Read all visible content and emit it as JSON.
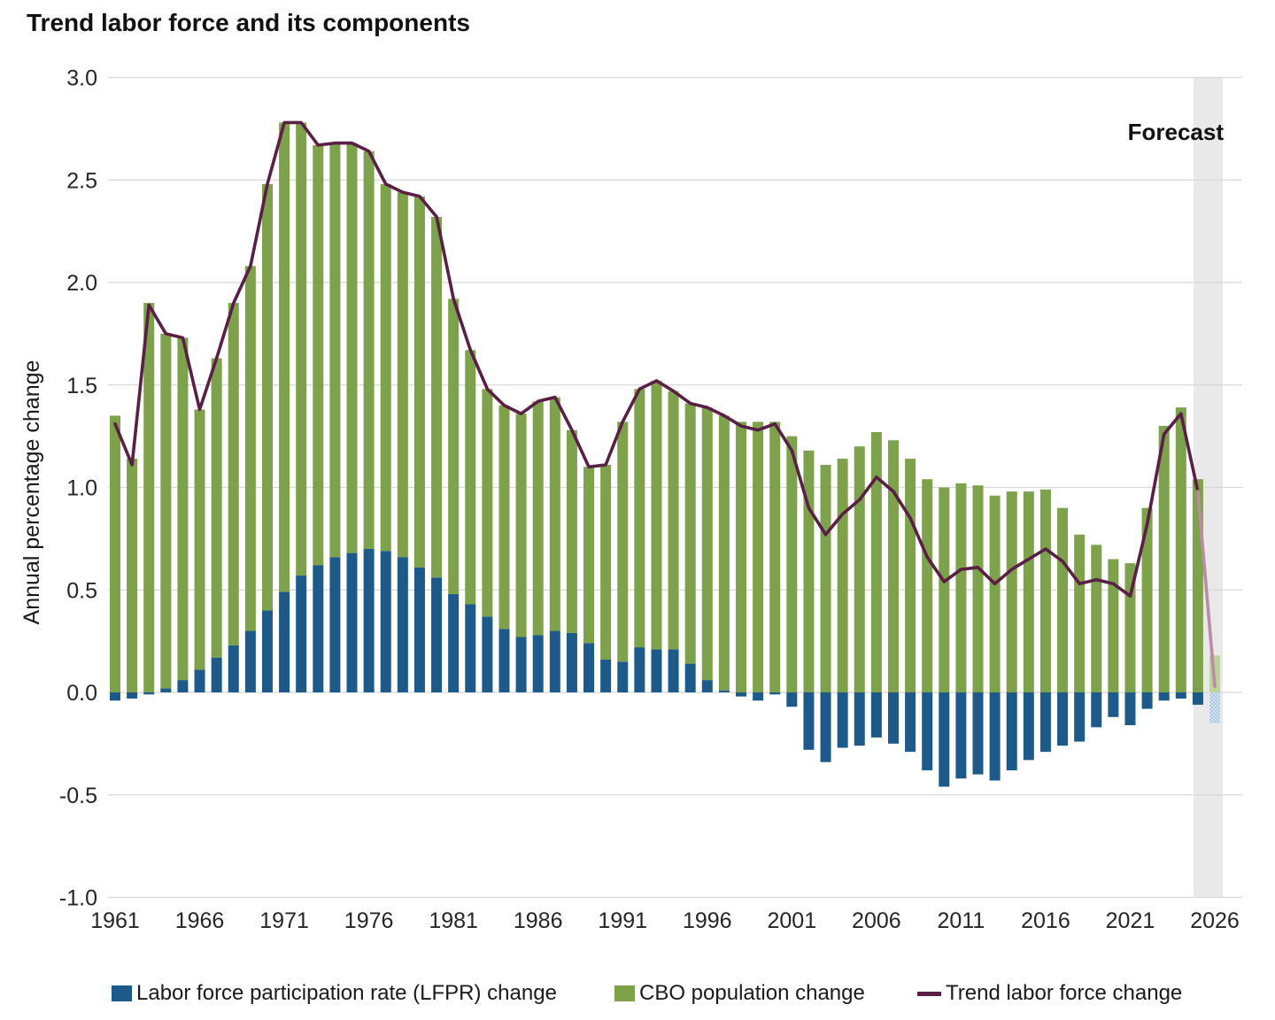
{
  "title": "Trend labor force and its components",
  "y_axis": {
    "title": "Annual percentage change",
    "tick_labels": [
      "3.0",
      "2.5",
      "2.0",
      "1.5",
      "1.0",
      "0.5",
      "0.0",
      "-0.5",
      "-1.0"
    ],
    "max": 3.0,
    "min": -1.0,
    "step": 0.5
  },
  "x_axis": {
    "tick_years": [
      1961,
      1966,
      1971,
      1976,
      1981,
      1986,
      1991,
      1996,
      2001,
      2006,
      2011,
      2016,
      2021,
      2026
    ]
  },
  "forecast": {
    "label": "Forecast",
    "year": 2026
  },
  "legend": [
    {
      "label": "Labor force participation rate (LFPR) change",
      "swatch": "blue-square",
      "color": "#1d5a8a"
    },
    {
      "label": "CBO population change",
      "swatch": "green-square",
      "color": "#7da24b"
    },
    {
      "label": "Trend labor force change",
      "swatch": "line",
      "color": "#5a1f45"
    }
  ],
  "colors": {
    "lfpr_bar": "#1d5a8a",
    "population_bar": "#7da24b",
    "trend_line": "#5a1f45",
    "trend_line_forecast": "#ba8aa8",
    "lfpr_bar_forecast": "#a7c6e1",
    "lfpr_bar_forecast_dot": "#d7e5f1",
    "population_bar_forecast": "#bcd39a",
    "forecast_band": "#e9e9e9",
    "gridline": "#d8d8d8",
    "axis_text": "#262626"
  },
  "chart_data": {
    "type": "stacked-bar-line",
    "title": "Trend labor force and its components",
    "ylabel": "Annual percentage change",
    "ylim": [
      -1.0,
      3.0
    ],
    "grid": "horizontal",
    "legend_position": "bottom",
    "forecast_year": 2026,
    "categories": [
      1961,
      1962,
      1963,
      1964,
      1965,
      1966,
      1967,
      1968,
      1969,
      1970,
      1971,
      1972,
      1973,
      1974,
      1975,
      1976,
      1977,
      1978,
      1979,
      1980,
      1981,
      1982,
      1983,
      1984,
      1985,
      1986,
      1987,
      1988,
      1989,
      1990,
      1991,
      1992,
      1993,
      1994,
      1995,
      1996,
      1997,
      1998,
      1999,
      2000,
      2001,
      2002,
      2003,
      2004,
      2005,
      2006,
      2007,
      2008,
      2009,
      2010,
      2011,
      2012,
      2013,
      2014,
      2015,
      2016,
      2017,
      2018,
      2019,
      2020,
      2021,
      2022,
      2023,
      2024,
      2025,
      2026
    ],
    "series": [
      {
        "name": "Labor force participation rate (LFPR) change",
        "type": "bar",
        "color": "#1d5a8a",
        "values": [
          -0.04,
          -0.03,
          -0.01,
          0.02,
          0.06,
          0.11,
          0.17,
          0.23,
          0.3,
          0.4,
          0.49,
          0.57,
          0.62,
          0.66,
          0.68,
          0.7,
          0.69,
          0.66,
          0.61,
          0.56,
          0.48,
          0.43,
          0.37,
          0.31,
          0.27,
          0.28,
          0.3,
          0.29,
          0.24,
          0.16,
          0.15,
          0.22,
          0.21,
          0.21,
          0.14,
          0.06,
          0.01,
          -0.02,
          -0.04,
          -0.01,
          -0.07,
          -0.28,
          -0.34,
          -0.27,
          -0.26,
          -0.22,
          -0.25,
          -0.29,
          -0.38,
          -0.46,
          -0.42,
          -0.4,
          -0.43,
          -0.38,
          -0.33,
          -0.29,
          -0.26,
          -0.24,
          -0.17,
          -0.12,
          -0.16,
          -0.08,
          -0.04,
          -0.03,
          -0.06,
          -0.15
        ]
      },
      {
        "name": "CBO population change",
        "type": "bar",
        "color": "#7da24b",
        "values": [
          1.35,
          1.14,
          1.9,
          1.73,
          1.67,
          1.27,
          1.46,
          1.67,
          1.78,
          2.08,
          2.29,
          2.21,
          2.05,
          2.02,
          2.0,
          1.94,
          1.79,
          1.78,
          1.81,
          1.76,
          1.44,
          1.24,
          1.11,
          1.09,
          1.09,
          1.14,
          1.14,
          0.99,
          0.86,
          0.95,
          1.17,
          1.26,
          1.31,
          1.26,
          1.27,
          1.33,
          1.34,
          1.32,
          1.32,
          1.32,
          1.25,
          1.18,
          1.11,
          1.14,
          1.2,
          1.27,
          1.23,
          1.14,
          1.04,
          1.0,
          1.02,
          1.01,
          0.96,
          0.98,
          0.98,
          0.99,
          0.9,
          0.77,
          0.72,
          0.65,
          0.63,
          0.9,
          1.3,
          1.39,
          1.04,
          0.18
        ]
      },
      {
        "name": "Trend labor force change",
        "type": "line",
        "color": "#5a1f45",
        "values": [
          1.31,
          1.11,
          1.89,
          1.75,
          1.73,
          1.38,
          1.63,
          1.9,
          2.08,
          2.48,
          2.78,
          2.78,
          2.67,
          2.68,
          2.68,
          2.64,
          2.48,
          2.44,
          2.42,
          2.32,
          1.92,
          1.67,
          1.48,
          1.4,
          1.36,
          1.42,
          1.44,
          1.28,
          1.1,
          1.11,
          1.32,
          1.48,
          1.52,
          1.47,
          1.41,
          1.39,
          1.35,
          1.3,
          1.28,
          1.31,
          1.18,
          0.9,
          0.77,
          0.87,
          0.94,
          1.05,
          0.98,
          0.85,
          0.66,
          0.54,
          0.6,
          0.61,
          0.53,
          0.6,
          0.65,
          0.7,
          0.64,
          0.53,
          0.55,
          0.53,
          0.47,
          0.82,
          1.26,
          1.36,
          0.98,
          0.03
        ]
      }
    ]
  }
}
